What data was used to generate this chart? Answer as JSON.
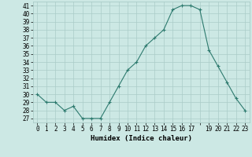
{
  "x": [
    0,
    1,
    2,
    3,
    4,
    5,
    6,
    7,
    8,
    9,
    10,
    11,
    12,
    13,
    14,
    15,
    16,
    17,
    18,
    19,
    20,
    21,
    22,
    23
  ],
  "y": [
    30,
    29,
    29,
    28,
    28.5,
    27,
    27,
    27,
    29,
    31,
    33,
    34,
    36,
    37,
    38,
    40.5,
    41,
    41,
    40.5,
    35.5,
    33.5,
    31.5,
    29.5,
    28
  ],
  "line_color": "#2d7a6e",
  "marker": "+",
  "marker_size": 3,
  "linewidth": 0.8,
  "xlabel": "Humidex (Indice chaleur)",
  "xlabel_fontsize": 6.5,
  "xlabel_fontweight": "bold",
  "ylabel_ticks": [
    27,
    28,
    29,
    30,
    31,
    32,
    33,
    34,
    35,
    36,
    37,
    38,
    39,
    40,
    41
  ],
  "xticks": [
    0,
    1,
    2,
    3,
    4,
    5,
    6,
    7,
    8,
    9,
    10,
    11,
    12,
    13,
    14,
    15,
    16,
    17,
    18,
    19,
    20,
    21,
    22,
    23
  ],
  "xlim": [
    -0.5,
    23.5
  ],
  "ylim": [
    26.5,
    41.5
  ],
  "background_color": "#cce8e4",
  "grid_color": "#aaccc8",
  "tick_fontsize": 5.5,
  "xtick_labels": [
    "0",
    "1",
    "2",
    "3",
    "4",
    "5",
    "6",
    "7",
    "8",
    "9",
    "10",
    "11",
    "12",
    "13",
    "14",
    "15",
    "16",
    "17",
    "",
    "19",
    "20",
    "21",
    "22",
    "23"
  ]
}
